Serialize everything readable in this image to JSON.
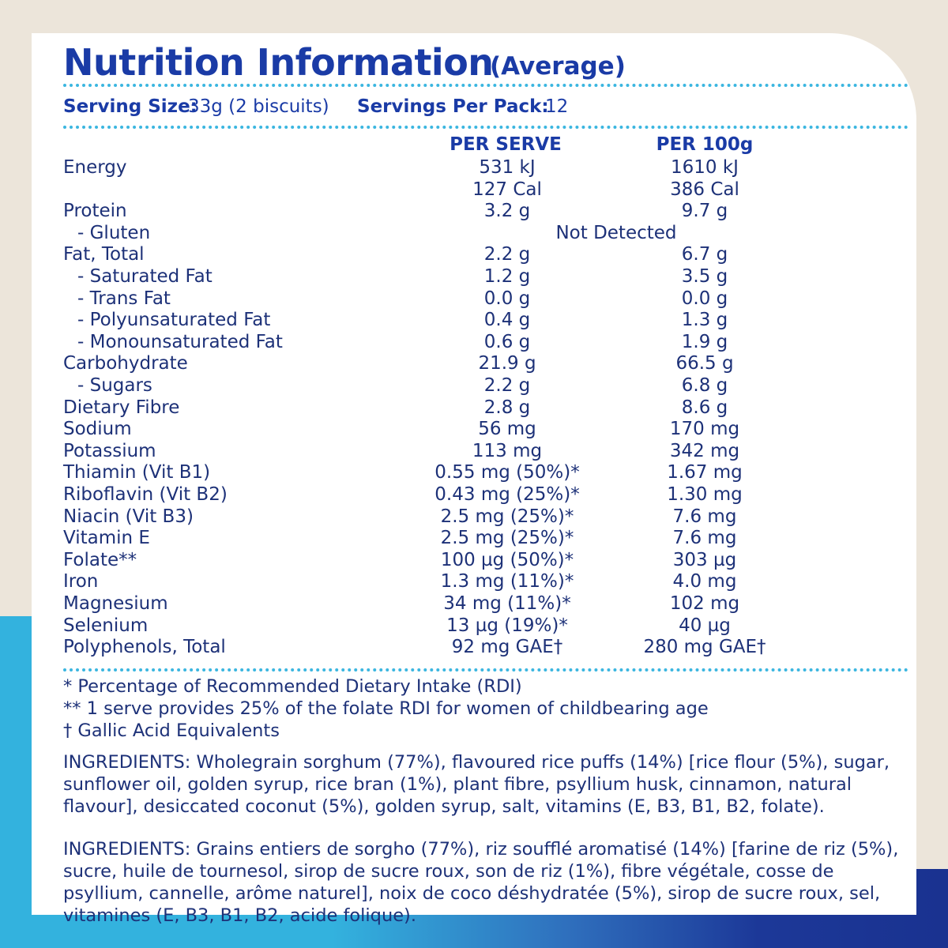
{
  "header": {
    "title": "Nutrition Information",
    "subtitle": "(Average)",
    "serving_size_label": "Serving Size:",
    "serving_size": "33g (2 biscuits)",
    "servings_per_pack_label": "Servings Per Pack:",
    "servings_per_pack": "12"
  },
  "table": {
    "columns": [
      "PER SERVE",
      "PER 100g"
    ],
    "rows": [
      {
        "label": "Energy",
        "per_serve": [
          "531 kJ",
          "127 Cal"
        ],
        "per_100g": [
          "1610 kJ",
          "386 Cal"
        ]
      },
      {
        "label": "Protein",
        "per_serve": [
          "3.2 g"
        ],
        "per_100g": [
          "9.7 g"
        ]
      },
      {
        "label": "- Gluten",
        "both": "Not Detected"
      },
      {
        "label": "Fat, Total",
        "per_serve": [
          "2.2 g"
        ],
        "per_100g": [
          "6.7 g"
        ]
      },
      {
        "label": "- Saturated Fat",
        "per_serve": [
          "1.2 g"
        ],
        "per_100g": [
          "3.5 g"
        ]
      },
      {
        "label": "- Trans Fat",
        "per_serve": [
          "0.0 g"
        ],
        "per_100g": [
          "0.0 g"
        ]
      },
      {
        "label": "- Polyunsaturated Fat",
        "per_serve": [
          "0.4 g"
        ],
        "per_100g": [
          "1.3 g"
        ]
      },
      {
        "label": "- Monounsaturated Fat",
        "per_serve": [
          "0.6 g"
        ],
        "per_100g": [
          "1.9 g"
        ]
      },
      {
        "label": "Carbohydrate",
        "per_serve": [
          "21.9 g"
        ],
        "per_100g": [
          "66.5 g"
        ]
      },
      {
        "label": "- Sugars",
        "per_serve": [
          "2.2 g"
        ],
        "per_100g": [
          "6.8 g"
        ]
      },
      {
        "label": "Dietary Fibre",
        "per_serve": [
          "2.8 g"
        ],
        "per_100g": [
          "8.6 g"
        ]
      },
      {
        "label": "Sodium",
        "per_serve": [
          "56 mg"
        ],
        "per_100g": [
          "170 mg"
        ]
      },
      {
        "label": "Potassium",
        "per_serve": [
          "113 mg"
        ],
        "per_100g": [
          "342 mg"
        ]
      },
      {
        "label": "Thiamin (Vit B1)",
        "per_serve": [
          "0.55 mg (50%)*"
        ],
        "per_100g": [
          "1.67 mg"
        ]
      },
      {
        "label": "Riboflavin (Vit B2)",
        "per_serve": [
          "0.43 mg (25%)*"
        ],
        "per_100g": [
          "1.30 mg"
        ]
      },
      {
        "label": "Niacin (Vit B3)",
        "per_serve": [
          "2.5 mg (25%)*"
        ],
        "per_100g": [
          "7.6 mg"
        ]
      },
      {
        "label": "Vitamin E",
        "per_serve": [
          "2.5 mg (25%)*"
        ],
        "per_100g": [
          "7.6 mg"
        ]
      },
      {
        "label": "Folate**",
        "per_serve": [
          "100 µg (50%)*"
        ],
        "per_100g": [
          "303 µg"
        ]
      },
      {
        "label": "Iron",
        "per_serve": [
          "1.3 mg (11%)*"
        ],
        "per_100g": [
          "4.0 mg"
        ]
      },
      {
        "label": "Magnesium",
        "per_serve": [
          "34 mg (11%)*"
        ],
        "per_100g": [
          "102 mg"
        ]
      },
      {
        "label": "Selenium",
        "per_serve": [
          "13 µg (19%)*"
        ],
        "per_100g": [
          "40 µg"
        ]
      },
      {
        "label": "Polyphenols, Total",
        "per_serve": [
          "92 mg GAE†"
        ],
        "per_100g": [
          "280 mg GAE†"
        ]
      }
    ]
  },
  "footnotes": [
    "* Percentage of Recommended Dietary Intake (RDI)",
    "** 1 serve provides 25% of the folate RDI for women of childbearing age",
    "† Gallic Acid Equivalents"
  ],
  "ingredients": [
    "INGREDIENTS: Wholegrain sorghum (77%), flavoured rice puffs (14%) [rice flour (5%), sugar, sunflower oil, golden syrup, rice bran (1%), plant fibre, psyllium husk, cinnamon, natural flavour], desiccated coconut (5%), golden syrup, salt, vitamins (E, B3, B1, B2, folate).",
    "INGREDIENTS: Grains entiers de sorgho (77%), riz soufflé aromatisé (14%) [farine de riz (5%), sucre, huile de tournesol, sirop de sucre roux, son de riz (1%), fibre végétale, cosse de psyllium, cannelle, arôme naturel], noix de coco déshydratée (5%), sirop de sucre roux, sel, vitamines (E, B3, B1, B2, acide folique)."
  ]
}
